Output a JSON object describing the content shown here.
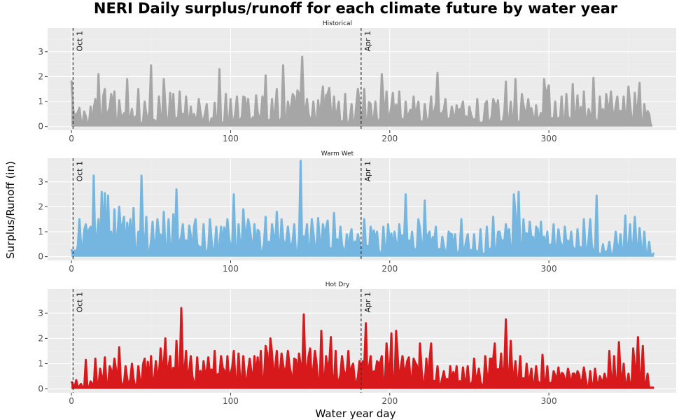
{
  "chart_data": {
    "type": "area",
    "title": "NERI Daily surplus/runoff for each climate future by water year",
    "xlabel": "Water year day",
    "ylabel": "Surplus/Runoff (in)",
    "xlim": [
      -15,
      380
    ],
    "ylim": [
      -0.15,
      3.95
    ],
    "x_ticks": [
      0,
      100,
      200,
      300
    ],
    "y_ticks": [
      0,
      1,
      2,
      3
    ],
    "grid": true,
    "reference_lines": [
      {
        "x": 1,
        "label": "Oct 1"
      },
      {
        "x": 182,
        "label": "Apr 1"
      }
    ],
    "series": [
      {
        "name": "Historical",
        "color": "#a6a6a6",
        "x_start": 0,
        "x_end": 365,
        "peaks": [
          [
            0,
            1.85
          ],
          [
            1,
            0.7
          ],
          [
            5,
            0.75
          ],
          [
            8,
            0.6
          ],
          [
            12,
            0.8
          ],
          [
            15,
            1.1
          ],
          [
            17,
            2.1
          ],
          [
            21,
            1.5
          ],
          [
            25,
            1.3
          ],
          [
            27,
            1.4
          ],
          [
            30,
            1.05
          ],
          [
            35,
            1.9
          ],
          [
            38,
            0.7
          ],
          [
            42,
            1.5
          ],
          [
            46,
            1.0
          ],
          [
            50,
            2.45
          ],
          [
            55,
            1.2
          ],
          [
            58,
            1.9
          ],
          [
            62,
            1.35
          ],
          [
            64,
            1.3
          ],
          [
            68,
            1.4
          ],
          [
            72,
            1.2
          ],
          [
            75,
            0.8
          ],
          [
            80,
            1.1
          ],
          [
            85,
            0.9
          ],
          [
            90,
            0.95
          ],
          [
            93,
            2.3
          ],
          [
            97,
            1.3
          ],
          [
            100,
            1.1
          ],
          [
            104,
            1.2
          ],
          [
            108,
            1.2
          ],
          [
            111,
            1.1
          ],
          [
            116,
            1.25
          ],
          [
            120,
            1.2
          ],
          [
            122,
            2.05
          ],
          [
            126,
            1.1
          ],
          [
            129,
            1.5
          ],
          [
            133,
            2.45
          ],
          [
            136,
            1.0
          ],
          [
            139,
            1.3
          ],
          [
            142,
            1.45
          ],
          [
            145,
            2.8
          ],
          [
            148,
            1.1
          ],
          [
            152,
            1.0
          ],
          [
            155,
            1.05
          ],
          [
            158,
            1.6
          ],
          [
            162,
            1.55
          ],
          [
            165,
            1.2
          ],
          [
            168,
            1.0
          ],
          [
            172,
            1.3
          ],
          [
            176,
            0.9
          ],
          [
            180,
            1.5
          ],
          [
            184,
            1.5
          ],
          [
            188,
            0.9
          ],
          [
            191,
            1.0
          ],
          [
            195,
            2.1
          ],
          [
            198,
            1.4
          ],
          [
            202,
            1.35
          ],
          [
            206,
            1.4
          ],
          [
            210,
            1.0
          ],
          [
            215,
            1.2
          ],
          [
            218,
            1.0
          ],
          [
            222,
            0.9
          ],
          [
            226,
            1.2
          ],
          [
            230,
            2.15
          ],
          [
            235,
            1.1
          ],
          [
            239,
            0.8
          ],
          [
            242,
            0.85
          ],
          [
            246,
            1.0
          ],
          [
            250,
            0.8
          ],
          [
            255,
            1.1
          ],
          [
            260,
            0.9
          ],
          [
            265,
            1.1
          ],
          [
            268,
            1.05
          ],
          [
            273,
            1.8
          ],
          [
            276,
            1.0
          ],
          [
            279,
            1.9
          ],
          [
            283,
            1.3
          ],
          [
            287,
            1.1
          ],
          [
            292,
            0.85
          ],
          [
            297,
            1.9
          ],
          [
            300,
            1.65
          ],
          [
            304,
            1.0
          ],
          [
            308,
            1.2
          ],
          [
            311,
            1.3
          ],
          [
            315,
            1.7
          ],
          [
            318,
            1.25
          ],
          [
            322,
            1.4
          ],
          [
            325,
            0.7
          ],
          [
            328,
            1.95
          ],
          [
            332,
            1.2
          ],
          [
            336,
            1.3
          ],
          [
            339,
            1.4
          ],
          [
            343,
            1.2
          ],
          [
            347,
            1.2
          ],
          [
            350,
            1.6
          ],
          [
            354,
            1.35
          ],
          [
            357,
            1.75
          ],
          [
            360,
            0.9
          ],
          [
            363,
            0.5
          ],
          [
            365,
            0.05
          ]
        ]
      },
      {
        "name": "Warm Wet",
        "color": "#74b6e0",
        "x_start": 0,
        "x_end": 366,
        "peaks": [
          [
            0,
            0.3
          ],
          [
            2,
            0.25
          ],
          [
            5,
            1.5
          ],
          [
            9,
            1.3
          ],
          [
            12,
            1.2
          ],
          [
            14,
            3.25
          ],
          [
            17,
            1.5
          ],
          [
            19,
            2.6
          ],
          [
            21,
            2.55
          ],
          [
            23,
            2.45
          ],
          [
            25,
            1.0
          ],
          [
            27,
            1.9
          ],
          [
            30,
            2.0
          ],
          [
            33,
            1.6
          ],
          [
            37,
            1.5
          ],
          [
            39,
            1.95
          ],
          [
            42,
            1.0
          ],
          [
            44,
            3.25
          ],
          [
            47,
            1.6
          ],
          [
            51,
            1.4
          ],
          [
            54,
            1.5
          ],
          [
            58,
            1.8
          ],
          [
            61,
            1.5
          ],
          [
            64,
            1.7
          ],
          [
            66,
            2.7
          ],
          [
            70,
            1.3
          ],
          [
            74,
            1.25
          ],
          [
            78,
            1.5
          ],
          [
            83,
            1.3
          ],
          [
            87,
            1.5
          ],
          [
            91,
            1.2
          ],
          [
            94,
            1.2
          ],
          [
            98,
            1.5
          ],
          [
            102,
            2.5
          ],
          [
            105,
            1.3
          ],
          [
            108,
            1.9
          ],
          [
            111,
            1.5
          ],
          [
            115,
            1.3
          ],
          [
            118,
            1.0
          ],
          [
            122,
            1.6
          ],
          [
            126,
            1.3
          ],
          [
            129,
            1.8
          ],
          [
            132,
            1.5
          ],
          [
            136,
            1.2
          ],
          [
            140,
            1.3
          ],
          [
            144,
            3.85
          ],
          [
            148,
            1.3
          ],
          [
            151,
            1.5
          ],
          [
            155,
            1.55
          ],
          [
            158,
            1.3
          ],
          [
            161,
            1.45
          ],
          [
            165,
            1.75
          ],
          [
            169,
            1.2
          ],
          [
            173,
            0.9
          ],
          [
            176,
            1.1
          ],
          [
            180,
            0.9
          ],
          [
            184,
            1.5
          ],
          [
            188,
            1.2
          ],
          [
            192,
            1.0
          ],
          [
            196,
            1.2
          ],
          [
            199,
            1.3
          ],
          [
            203,
            1.0
          ],
          [
            206,
            1.3
          ],
          [
            210,
            2.5
          ],
          [
            214,
            1.0
          ],
          [
            218,
            1.5
          ],
          [
            222,
            2.25
          ],
          [
            225,
            1.0
          ],
          [
            229,
            1.2
          ],
          [
            233,
            0.8
          ],
          [
            237,
            1.0
          ],
          [
            241,
            0.9
          ],
          [
            245,
            1.5
          ],
          [
            249,
            0.9
          ],
          [
            253,
            0.9
          ],
          [
            257,
            1.1
          ],
          [
            261,
            1.2
          ],
          [
            265,
            1.6
          ],
          [
            269,
            1.0
          ],
          [
            273,
            1.3
          ],
          [
            278,
            2.5
          ],
          [
            281,
            2.6
          ],
          [
            284,
            1.5
          ],
          [
            288,
            1.4
          ],
          [
            292,
            1.2
          ],
          [
            295,
            1.4
          ],
          [
            299,
            1.0
          ],
          [
            303,
            1.3
          ],
          [
            306,
            1.1
          ],
          [
            310,
            1.2
          ],
          [
            314,
            1.0
          ],
          [
            318,
            1.1
          ],
          [
            322,
            1.5
          ],
          [
            326,
            1.5
          ],
          [
            330,
            2.45
          ],
          [
            334,
            0.5
          ],
          [
            338,
            0.6
          ],
          [
            342,
            1.0
          ],
          [
            345,
            0.9
          ],
          [
            348,
            1.65
          ],
          [
            351,
            1.3
          ],
          [
            354,
            1.6
          ],
          [
            357,
            1.15
          ],
          [
            360,
            1.0
          ],
          [
            363,
            0.6
          ],
          [
            366,
            0.15
          ]
        ]
      },
      {
        "name": "Hot Dry",
        "color": "#d7191c",
        "x_start": 0,
        "x_end": 366,
        "peaks": [
          [
            0,
            0.3
          ],
          [
            3,
            0.35
          ],
          [
            6,
            0.2
          ],
          [
            9,
            1.15
          ],
          [
            12,
            0.3
          ],
          [
            15,
            1.2
          ],
          [
            18,
            0.8
          ],
          [
            21,
            1.25
          ],
          [
            24,
            0.9
          ],
          [
            27,
            1.2
          ],
          [
            30,
            1.65
          ],
          [
            34,
            0.9
          ],
          [
            38,
            1.0
          ],
          [
            42,
            0.9
          ],
          [
            46,
            1.2
          ],
          [
            50,
            1.3
          ],
          [
            53,
            1.1
          ],
          [
            56,
            1.6
          ],
          [
            59,
            2.0
          ],
          [
            62,
            1.3
          ],
          [
            66,
            1.9
          ],
          [
            69,
            3.2
          ],
          [
            72,
            1.5
          ],
          [
            75,
            1.3
          ],
          [
            79,
            1.25
          ],
          [
            83,
            1.1
          ],
          [
            86,
            1.25
          ],
          [
            90,
            1.5
          ],
          [
            94,
            1.3
          ],
          [
            98,
            1.3
          ],
          [
            102,
            1.5
          ],
          [
            105,
            1.4
          ],
          [
            108,
            1.3
          ],
          [
            112,
            1.2
          ],
          [
            115,
            1.3
          ],
          [
            119,
            1.5
          ],
          [
            122,
            1.7
          ],
          [
            125,
            2.0
          ],
          [
            129,
            1.5
          ],
          [
            132,
            1.4
          ],
          [
            136,
            1.5
          ],
          [
            140,
            1.2
          ],
          [
            143,
            1.4
          ],
          [
            146,
            2.95
          ],
          [
            150,
            1.6
          ],
          [
            153,
            1.5
          ],
          [
            157,
            2.3
          ],
          [
            160,
            1.3
          ],
          [
            163,
            2.05
          ],
          [
            166,
            1.5
          ],
          [
            170,
            1.3
          ],
          [
            174,
            1.5
          ],
          [
            177,
            1.0
          ],
          [
            181,
            1.1
          ],
          [
            185,
            2.6
          ],
          [
            188,
            1.3
          ],
          [
            192,
            1.1
          ],
          [
            195,
            1.3
          ],
          [
            198,
            1.8
          ],
          [
            201,
            2.2
          ],
          [
            204,
            2.3
          ],
          [
            208,
            1.3
          ],
          [
            212,
            1.25
          ],
          [
            215,
            1.2
          ],
          [
            219,
            1.8
          ],
          [
            223,
            1.2
          ],
          [
            226,
            1.8
          ],
          [
            230,
            0.9
          ],
          [
            234,
            0.7
          ],
          [
            238,
            0.9
          ],
          [
            242,
            0.9
          ],
          [
            246,
            0.85
          ],
          [
            249,
            0.9
          ],
          [
            253,
            1.2
          ],
          [
            256,
            0.8
          ],
          [
            260,
            1.3
          ],
          [
            263,
            1.2
          ],
          [
            266,
            1.8
          ],
          [
            270,
            1.4
          ],
          [
            273,
            2.75
          ],
          [
            276,
            1.9
          ],
          [
            279,
            1.1
          ],
          [
            282,
            1.3
          ],
          [
            286,
            1.0
          ],
          [
            289,
            0.8
          ],
          [
            292,
            0.9
          ],
          [
            296,
            1.35
          ],
          [
            299,
            0.9
          ],
          [
            303,
            0.7
          ],
          [
            306,
            0.85
          ],
          [
            309,
            0.6
          ],
          [
            312,
            0.8
          ],
          [
            315,
            0.6
          ],
          [
            318,
            0.7
          ],
          [
            322,
            0.85
          ],
          [
            326,
            0.7
          ],
          [
            329,
            0.8
          ],
          [
            332,
            0.5
          ],
          [
            335,
            0.6
          ],
          [
            338,
            1.5
          ],
          [
            341,
            1.3
          ],
          [
            344,
            1.85
          ],
          [
            347,
            1.0
          ],
          [
            350,
            0.6
          ],
          [
            353,
            1.6
          ],
          [
            356,
            2.05
          ],
          [
            359,
            1.7
          ],
          [
            362,
            0.6
          ],
          [
            364,
            0.05
          ],
          [
            366,
            0.05
          ]
        ]
      }
    ]
  }
}
